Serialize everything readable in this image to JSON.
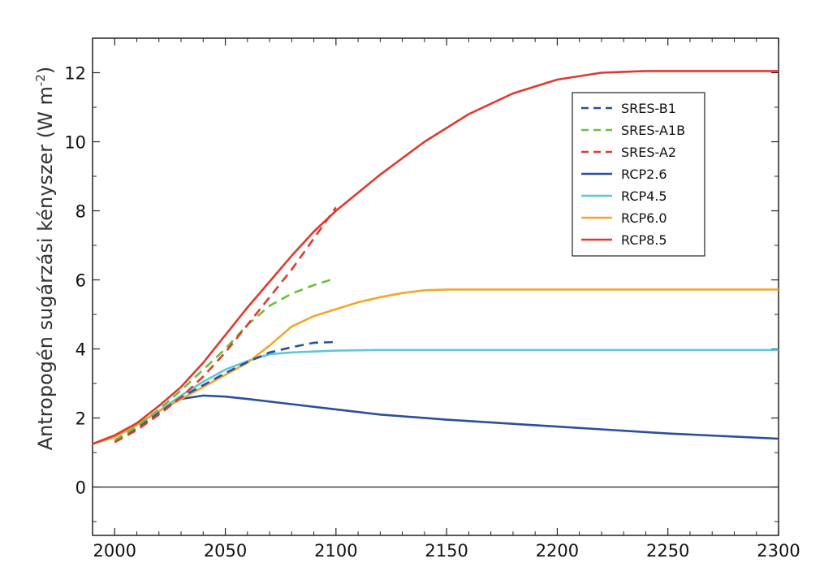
{
  "chart_data": {
    "type": "line",
    "title": "",
    "xlabel": "",
    "ylabel_main": "Antropogén sugárzási kényszer (W m",
    "ylabel_sup": "-2",
    "ylabel_close": ")",
    "xlim": [
      1990,
      2300
    ],
    "ylim": [
      -1.4,
      13
    ],
    "xticks": [
      2000,
      2050,
      2100,
      2150,
      2200,
      2250,
      2300
    ],
    "yticks": [
      0,
      2,
      4,
      6,
      8,
      10,
      12
    ],
    "grid": false,
    "zero_line": true,
    "legend_position": "top-right",
    "series": [
      {
        "name": "SRES-B1",
        "color": "#2b4ea0",
        "dash": "dashed",
        "x": [
          2000,
          2010,
          2020,
          2030,
          2040,
          2050,
          2060,
          2070,
          2080,
          2090,
          2100
        ],
        "y": [
          1.35,
          1.7,
          2.15,
          2.6,
          2.95,
          3.3,
          3.62,
          3.9,
          4.05,
          4.18,
          4.2
        ]
      },
      {
        "name": "SRES-A1B",
        "color": "#6abf3a",
        "dash": "dashed",
        "x": [
          2000,
          2010,
          2020,
          2030,
          2040,
          2050,
          2060,
          2070,
          2080,
          2090,
          2100
        ],
        "y": [
          1.35,
          1.75,
          2.25,
          2.8,
          3.4,
          4.0,
          4.7,
          5.25,
          5.6,
          5.85,
          6.05
        ]
      },
      {
        "name": "SRES-A2",
        "color": "#e0392f",
        "dash": "dashed",
        "x": [
          2000,
          2010,
          2020,
          2030,
          2040,
          2050,
          2060,
          2070,
          2080,
          2090,
          2100
        ],
        "y": [
          1.3,
          1.65,
          2.1,
          2.6,
          3.2,
          3.9,
          4.7,
          5.5,
          6.3,
          7.2,
          8.1
        ]
      },
      {
        "name": "RCP2.6",
        "color": "#2b4ea0",
        "dash": "solid",
        "x": [
          1990,
          2000,
          2010,
          2020,
          2030,
          2040,
          2050,
          2060,
          2080,
          2100,
          2120,
          2150,
          2200,
          2250,
          2300
        ],
        "y": [
          1.25,
          1.45,
          1.8,
          2.2,
          2.55,
          2.65,
          2.62,
          2.55,
          2.4,
          2.25,
          2.1,
          1.95,
          1.75,
          1.55,
          1.4
        ]
      },
      {
        "name": "RCP4.5",
        "color": "#5cc8d8",
        "dash": "solid",
        "x": [
          1990,
          2000,
          2010,
          2020,
          2030,
          2040,
          2050,
          2060,
          2070,
          2080,
          2100,
          2120,
          2150,
          2200,
          2250,
          2300
        ],
        "y": [
          1.25,
          1.45,
          1.8,
          2.2,
          2.65,
          3.05,
          3.4,
          3.65,
          3.85,
          3.9,
          3.95,
          3.97,
          3.97,
          3.97,
          3.97,
          3.97
        ]
      },
      {
        "name": "RCP6.0",
        "color": "#f2a62c",
        "dash": "solid",
        "x": [
          1990,
          2000,
          2010,
          2020,
          2030,
          2040,
          2050,
          2060,
          2070,
          2080,
          2090,
          2100,
          2110,
          2120,
          2130,
          2140,
          2150,
          2200,
          2250,
          2300
        ],
        "y": [
          1.25,
          1.45,
          1.8,
          2.2,
          2.55,
          2.9,
          3.25,
          3.6,
          4.1,
          4.65,
          4.95,
          5.15,
          5.35,
          5.5,
          5.62,
          5.7,
          5.72,
          5.72,
          5.72,
          5.72
        ]
      },
      {
        "name": "RCP8.5",
        "color": "#e0392f",
        "dash": "solid",
        "x": [
          1990,
          2000,
          2010,
          2020,
          2030,
          2040,
          2050,
          2060,
          2070,
          2080,
          2090,
          2100,
          2120,
          2140,
          2160,
          2180,
          2200,
          2220,
          2240,
          2260,
          2280,
          2300
        ],
        "y": [
          1.25,
          1.5,
          1.85,
          2.35,
          2.9,
          3.6,
          4.4,
          5.2,
          5.95,
          6.7,
          7.4,
          8.0,
          9.05,
          10.0,
          10.8,
          11.4,
          11.8,
          12.0,
          12.05,
          12.05,
          12.05,
          12.05
        ]
      }
    ]
  }
}
